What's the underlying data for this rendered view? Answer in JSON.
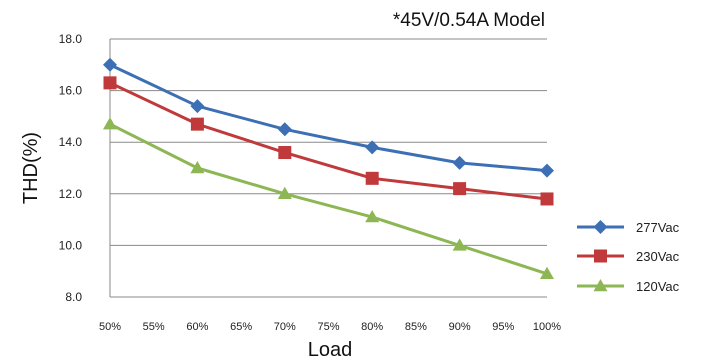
{
  "chart_data": {
    "type": "line",
    "title": "*45V/0.54A Model",
    "xlabel": "Load",
    "ylabel": "THD(%)",
    "x_ticks": [
      "50%",
      "55%",
      "60%",
      "65%",
      "70%",
      "75%",
      "80%",
      "85%",
      "90%",
      "95%",
      "100%"
    ],
    "x_tick_values": [
      50,
      55,
      60,
      65,
      70,
      75,
      80,
      85,
      90,
      95,
      100
    ],
    "xlim": [
      50,
      100
    ],
    "y_ticks": [
      "8.0",
      "10.0",
      "12.0",
      "14.0",
      "16.0",
      "18.0"
    ],
    "y_tick_values": [
      8,
      10,
      12,
      14,
      16,
      18
    ],
    "ylim": [
      8,
      18
    ],
    "grid": "horizontal",
    "legend_position": "right",
    "x": [
      50,
      60,
      70,
      80,
      90,
      100
    ],
    "series": [
      {
        "name": "277Vac",
        "marker": "diamond",
        "color": "#3d6fb4",
        "values": [
          17.0,
          15.4,
          14.5,
          13.8,
          13.2,
          12.9
        ]
      },
      {
        "name": "230Vac",
        "marker": "square",
        "color": "#c0393b",
        "values": [
          16.3,
          14.7,
          13.6,
          12.6,
          12.2,
          11.8
        ]
      },
      {
        "name": "120Vac",
        "marker": "triangle",
        "color": "#8db754",
        "values": [
          14.7,
          13.0,
          12.0,
          11.1,
          10.0,
          8.9
        ]
      }
    ]
  }
}
